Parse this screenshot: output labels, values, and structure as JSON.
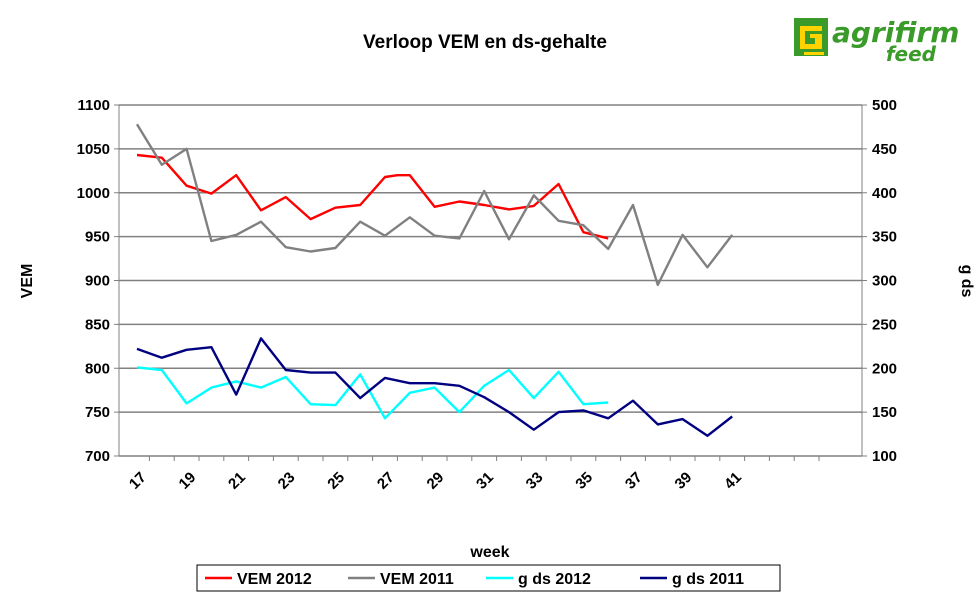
{
  "chart_data": {
    "type": "line",
    "title": "Verloop VEM en ds-gehalte",
    "xlabel": "week",
    "ylabel": "VEM",
    "y2label": "g ds",
    "x": [
      17,
      18,
      19,
      20,
      21,
      22,
      23,
      24,
      25,
      26,
      27,
      28,
      29,
      30,
      31,
      32,
      33,
      34,
      35,
      36,
      37,
      38,
      39,
      40,
      41,
      42,
      43,
      44
    ],
    "x_tick_labels": [
      "17",
      "19",
      "21",
      "23",
      "25",
      "27",
      "29",
      "31",
      "33",
      "35",
      "37",
      "39",
      "41"
    ],
    "ylim": [
      700,
      1100
    ],
    "y_ticks": [
      "1100",
      "1050",
      "1000",
      "950",
      "900",
      "850",
      "800",
      "750",
      "700"
    ],
    "y2lim": [
      100,
      500
    ],
    "y2_ticks": [
      "500",
      "450",
      "400",
      "350",
      "300",
      "250",
      "200",
      "150",
      "100"
    ],
    "grid": true,
    "legend_position": "bottom",
    "series": [
      {
        "name": "VEM 2012",
        "axis": "left",
        "color": "#ff0000",
        "x": [
          17,
          18,
          19,
          20,
          21,
          22,
          23,
          24,
          25,
          26,
          27,
          27.5,
          28,
          29,
          30,
          31,
          32,
          33,
          34,
          35,
          36
        ],
        "values": [
          1043,
          1040,
          1008,
          999,
          1020,
          980,
          995,
          970,
          983,
          986,
          1018,
          1020,
          1020,
          984,
          990,
          986,
          981,
          985,
          1010,
          955,
          948
        ]
      },
      {
        "name": "VEM 2011",
        "axis": "left",
        "color": "#808080",
        "x": [
          17,
          18,
          19,
          20,
          21,
          22,
          23,
          24,
          25,
          26,
          27,
          28,
          29,
          30,
          31,
          32,
          33,
          34,
          35,
          36,
          37,
          38,
          39,
          40,
          41
        ],
        "values": [
          1078,
          1032,
          1050,
          945,
          952,
          967,
          938,
          933,
          937,
          967,
          951,
          972,
          951,
          948,
          1002,
          947,
          997,
          968,
          963,
          936,
          986,
          895,
          952,
          915,
          952
        ]
      },
      {
        "name": "g ds 2012",
        "axis": "right",
        "color": "#00ffff",
        "x": [
          17,
          18,
          19,
          20,
          21,
          22,
          23,
          24,
          25,
          26,
          27,
          28,
          29,
          30,
          31,
          32,
          33,
          34,
          35,
          36
        ],
        "values": [
          201,
          198,
          160,
          178,
          185,
          178,
          190,
          159,
          158,
          193,
          143,
          172,
          178,
          150,
          180,
          198,
          166,
          196,
          159,
          161
        ]
      },
      {
        "name": "g ds 2011",
        "axis": "right",
        "color": "#000080",
        "x": [
          17,
          18,
          19,
          20,
          21,
          22,
          23,
          24,
          25,
          26,
          27,
          28,
          29,
          30,
          31,
          32,
          33,
          34,
          35,
          36,
          37,
          38,
          39,
          40,
          41
        ],
        "values": [
          222,
          212,
          221,
          224,
          170,
          234,
          198,
          195,
          195,
          166,
          189,
          183,
          183,
          180,
          167,
          150,
          130,
          150,
          152,
          143,
          163,
          136,
          142,
          123,
          145
        ]
      }
    ]
  },
  "logo": {
    "brand": "agrifirm",
    "sub": "feed",
    "color": "#3a9a2a"
  }
}
